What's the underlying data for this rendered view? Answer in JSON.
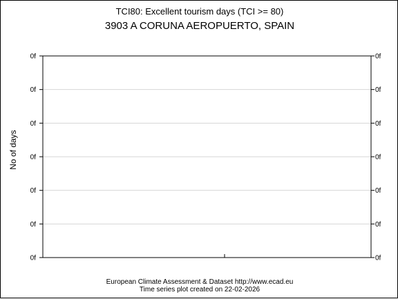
{
  "chart_data": {
    "type": "line",
    "title": "TCI80: Excellent tourism days (TCI >= 80)",
    "subtitle": "3903 A CORUNA AEROPUERTO, SPAIN",
    "ylabel": "No of days",
    "xlabel": "",
    "y_tick_labels": [
      "0f",
      "0f",
      "0f",
      "0f",
      "0f",
      "0f",
      "0f"
    ],
    "series": [],
    "grid": true,
    "footer_line1": "European Climate Assessment & Dataset  http://www.ecad.eu",
    "footer_line2": "Time series plot created on 22-02-2026"
  }
}
